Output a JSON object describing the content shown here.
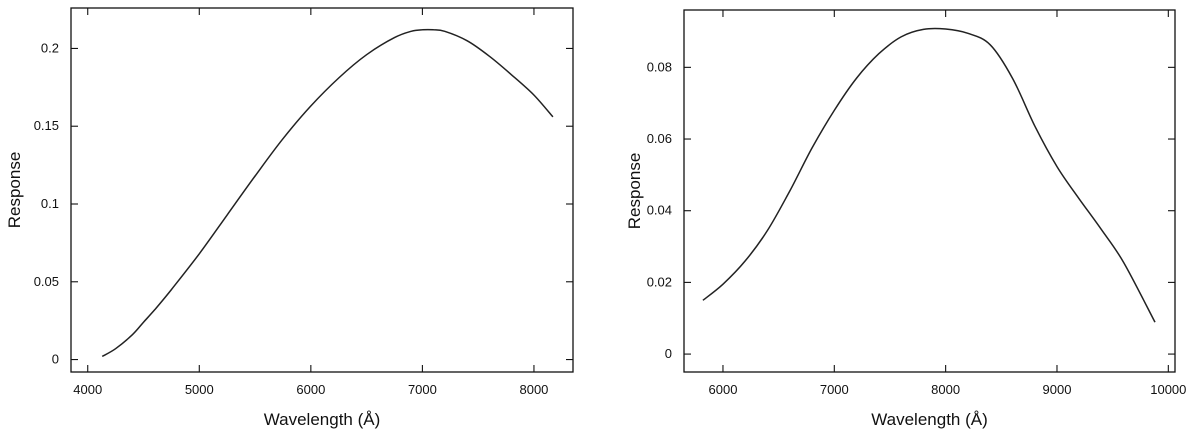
{
  "chart_data": [
    {
      "type": "line",
      "xlabel": "Wavelength (Å)",
      "ylabel": "Response",
      "xlim": [
        3850,
        8350
      ],
      "ylim": [
        -0.008,
        0.226
      ],
      "x_ticks": [
        {
          "value": 4000,
          "label": "4000"
        },
        {
          "value": 5000,
          "label": "5000"
        },
        {
          "value": 6000,
          "label": "6000"
        },
        {
          "value": 7000,
          "label": "7000"
        },
        {
          "value": 8000,
          "label": "8000"
        }
      ],
      "y_ticks": [
        {
          "value": 0,
          "label": "0"
        },
        {
          "value": 0.05,
          "label": "0.05"
        },
        {
          "value": 0.1,
          "label": "0.1"
        },
        {
          "value": 0.15,
          "label": "0.15"
        },
        {
          "value": 0.2,
          "label": "0.2"
        }
      ],
      "series": [
        {
          "x": [
            4130,
            4250,
            4400,
            4500,
            4600,
            4750,
            5000,
            5250,
            5500,
            5750,
            6000,
            6250,
            6500,
            6750,
            6900,
            7000,
            7100,
            7200,
            7400,
            7600,
            7800,
            8000,
            8170
          ],
          "y": [
            0.002,
            0.007,
            0.016,
            0.024,
            0.032,
            0.045,
            0.068,
            0.093,
            0.118,
            0.142,
            0.163,
            0.181,
            0.196,
            0.207,
            0.211,
            0.212,
            0.212,
            0.211,
            0.205,
            0.195,
            0.183,
            0.17,
            0.156
          ]
        }
      ]
    },
    {
      "type": "line",
      "xlabel": "Wavelength (Å)",
      "ylabel": "Response",
      "xlim": [
        5650,
        10060
      ],
      "ylim": [
        -0.005,
        0.096
      ],
      "x_ticks": [
        {
          "value": 6000,
          "label": "6000"
        },
        {
          "value": 7000,
          "label": "7000"
        },
        {
          "value": 8000,
          "label": "8000"
        },
        {
          "value": 9000,
          "label": "9000"
        },
        {
          "value": 10000,
          "label": "10000"
        }
      ],
      "y_ticks": [
        {
          "value": 0,
          "label": "0"
        },
        {
          "value": 0.02,
          "label": "0.02"
        },
        {
          "value": 0.04,
          "label": "0.04"
        },
        {
          "value": 0.06,
          "label": "0.06"
        },
        {
          "value": 0.08,
          "label": "0.08"
        }
      ],
      "series": [
        {
          "x": [
            5820,
            6000,
            6200,
            6400,
            6600,
            6800,
            7000,
            7200,
            7400,
            7600,
            7800,
            8000,
            8200,
            8400,
            8600,
            8800,
            9000,
            9200,
            9400,
            9600,
            9880
          ],
          "y": [
            0.015,
            0.0195,
            0.026,
            0.0345,
            0.0455,
            0.0575,
            0.068,
            0.077,
            0.0838,
            0.0885,
            0.0906,
            0.0907,
            0.0895,
            0.0863,
            0.077,
            0.0637,
            0.0523,
            0.0433,
            0.0347,
            0.0255,
            0.0089
          ]
        }
      ]
    }
  ]
}
